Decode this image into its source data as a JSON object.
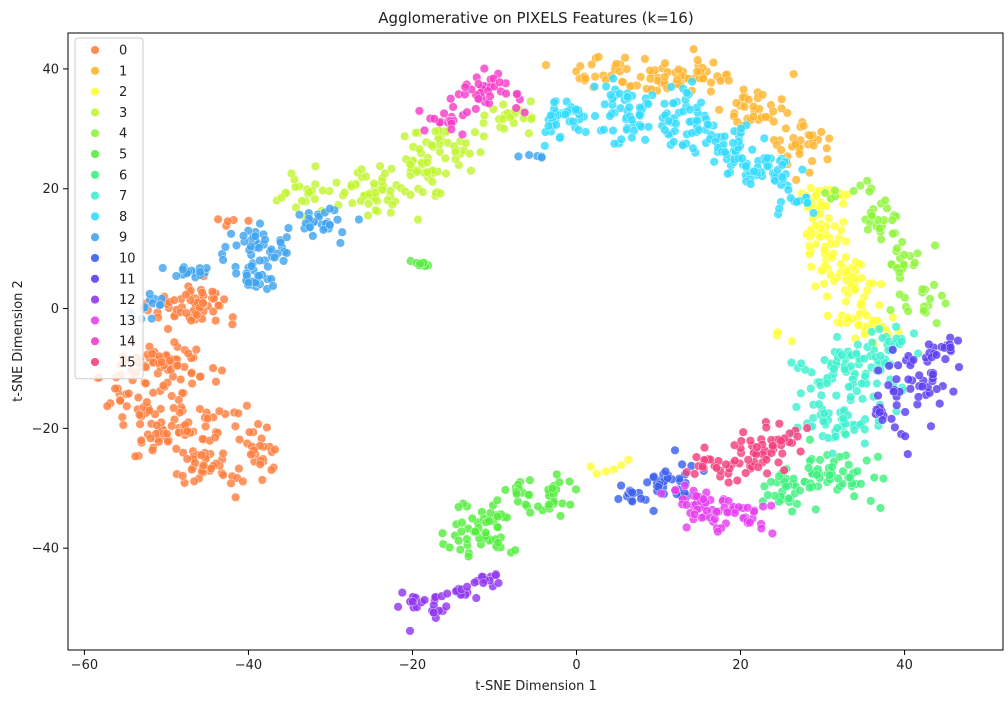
{
  "chart_data": {
    "type": "scatter",
    "title": "Agglomerative on PIXELS Features (k=16)",
    "xlabel": "t-SNE Dimension 1",
    "ylabel": "t-SNE Dimension 2",
    "xlim": [
      -62,
      52
    ],
    "ylim": [
      -57,
      46
    ],
    "xticks": [
      -60,
      -40,
      -20,
      0,
      20,
      40
    ],
    "yticks": [
      -40,
      -20,
      0,
      20,
      40
    ],
    "xtick_labels": [
      "−60",
      "−40",
      "−20",
      "0",
      "20",
      "40"
    ],
    "ytick_labels": [
      "−40",
      "−20",
      "0",
      "20",
      "40"
    ],
    "grid": false,
    "legend_position": "top-left",
    "series": [
      {
        "name": "0",
        "color": "#ff7f3f",
        "clusters": [
          {
            "cx": -47,
            "cy": 0,
            "sx": 2.5,
            "sy": 2.2,
            "n": 60
          },
          {
            "cx": -50,
            "cy": -10,
            "sx": 2.6,
            "sy": 2.2,
            "n": 70
          },
          {
            "cx": -48,
            "cy": -20,
            "sx": 3.0,
            "sy": 2.2,
            "n": 70
          },
          {
            "cx": -45,
            "cy": -27,
            "sx": 2.2,
            "sy": 1.6,
            "n": 35
          },
          {
            "cx": -39,
            "cy": -24,
            "sx": 1.3,
            "sy": 2.5,
            "n": 30
          },
          {
            "cx": -55,
            "cy": -14,
            "sx": 1.5,
            "sy": 3.0,
            "n": 25
          },
          {
            "cx": -42,
            "cy": 14,
            "sx": 1.0,
            "sy": 0.6,
            "n": 5
          }
        ]
      },
      {
        "name": "1",
        "color": "#ffb52e",
        "clusters": [
          {
            "cx": 2,
            "cy": 39,
            "sx": 1.8,
            "sy": 1.4,
            "n": 25
          },
          {
            "cx": 9,
            "cy": 39,
            "sx": 2.0,
            "sy": 1.3,
            "n": 25
          },
          {
            "cx": 15,
            "cy": 39,
            "sx": 2.0,
            "sy": 1.3,
            "n": 30
          },
          {
            "cx": 22,
            "cy": 33,
            "sx": 1.8,
            "sy": 2.2,
            "n": 35
          },
          {
            "cx": 28,
            "cy": 27,
            "sx": 1.8,
            "sy": 2.2,
            "n": 35
          }
        ]
      },
      {
        "name": "2",
        "color": "#ffff33",
        "clusters": [
          {
            "cx": 30,
            "cy": 18,
            "sx": 1.5,
            "sy": 1.5,
            "n": 30
          },
          {
            "cx": 30,
            "cy": 11,
            "sx": 1.5,
            "sy": 2.5,
            "n": 40
          },
          {
            "cx": 33,
            "cy": 5,
            "sx": 2.0,
            "sy": 2.0,
            "n": 40
          },
          {
            "cx": 35,
            "cy": -2,
            "sx": 2.0,
            "sy": 2.0,
            "n": 40
          },
          {
            "cx": 3,
            "cy": -27,
            "sx": 1.5,
            "sy": 0.6,
            "n": 6
          },
          {
            "cx": 25,
            "cy": -4,
            "sx": 0.7,
            "sy": 0.6,
            "n": 3
          }
        ]
      },
      {
        "name": "3",
        "color": "#c2f531",
        "clusters": [
          {
            "cx": -33,
            "cy": 19,
            "sx": 1.6,
            "sy": 1.5,
            "n": 25
          },
          {
            "cx": -25,
            "cy": 20,
            "sx": 2.2,
            "sy": 2.0,
            "n": 40
          },
          {
            "cx": -19,
            "cy": 23,
            "sx": 1.5,
            "sy": 2.8,
            "n": 45
          },
          {
            "cx": -15,
            "cy": 27,
            "sx": 1.6,
            "sy": 1.6,
            "n": 25
          },
          {
            "cx": -8,
            "cy": 32,
            "sx": 1.6,
            "sy": 1.3,
            "n": 25
          }
        ]
      },
      {
        "name": "4",
        "color": "#8ff53a",
        "clusters": [
          {
            "cx": 37,
            "cy": 14,
            "sx": 1.6,
            "sy": 1.6,
            "n": 22
          },
          {
            "cx": 40,
            "cy": 8,
            "sx": 1.5,
            "sy": 1.5,
            "n": 18
          },
          {
            "cx": 42,
            "cy": 1,
            "sx": 1.5,
            "sy": 2.0,
            "n": 18
          },
          {
            "cx": 34,
            "cy": 20,
            "sx": 1.5,
            "sy": 1.2,
            "n": 10
          }
        ]
      },
      {
        "name": "5",
        "color": "#54ee3e",
        "clusters": [
          {
            "cx": -11,
            "cy": -37,
            "sx": 2.0,
            "sy": 2.5,
            "n": 55
          },
          {
            "cx": -4,
            "cy": -31,
            "sx": 2.0,
            "sy": 1.6,
            "n": 40
          },
          {
            "cx": -19,
            "cy": 7.5,
            "sx": 0.7,
            "sy": 0.3,
            "n": 8
          }
        ]
      },
      {
        "name": "6",
        "color": "#3ef07e",
        "clusters": [
          {
            "cx": 32,
            "cy": -27,
            "sx": 2.5,
            "sy": 2.2,
            "n": 50
          },
          {
            "cx": 26,
            "cy": -30,
            "sx": 1.8,
            "sy": 1.8,
            "n": 30
          }
        ]
      },
      {
        "name": "7",
        "color": "#3ef0d0",
        "clusters": [
          {
            "cx": 33,
            "cy": -10,
            "sx": 2.8,
            "sy": 2.8,
            "n": 80
          },
          {
            "cx": 32,
            "cy": -19,
            "sx": 2.8,
            "sy": 2.0,
            "n": 50
          },
          {
            "cx": 38,
            "cy": -5,
            "sx": 1.5,
            "sy": 1.5,
            "n": 20
          }
        ]
      },
      {
        "name": "8",
        "color": "#33dcff",
        "clusters": [
          {
            "cx": -2,
            "cy": 32,
            "sx": 1.5,
            "sy": 2.0,
            "n": 40
          },
          {
            "cx": 6,
            "cy": 33,
            "sx": 1.6,
            "sy": 2.5,
            "n": 50
          },
          {
            "cx": 13,
            "cy": 32,
            "sx": 1.8,
            "sy": 2.8,
            "n": 55
          },
          {
            "cx": 19,
            "cy": 27,
            "sx": 1.8,
            "sy": 2.2,
            "n": 40
          },
          {
            "cx": 23,
            "cy": 23,
            "sx": 2.2,
            "sy": 1.5,
            "n": 40
          },
          {
            "cx": 27,
            "cy": 18,
            "sx": 1.2,
            "sy": 1.2,
            "n": 12
          }
        ]
      },
      {
        "name": "9",
        "color": "#3fa3f0",
        "clusters": [
          {
            "cx": -31,
            "cy": 14,
            "sx": 1.8,
            "sy": 1.6,
            "n": 30
          },
          {
            "cx": -39,
            "cy": 10,
            "sx": 2.0,
            "sy": 2.0,
            "n": 40
          },
          {
            "cx": -39,
            "cy": 5,
            "sx": 1.5,
            "sy": 1.5,
            "n": 25
          },
          {
            "cx": -47,
            "cy": 6,
            "sx": 1.6,
            "sy": 0.7,
            "n": 15
          },
          {
            "cx": -52,
            "cy": 1,
            "sx": 0.8,
            "sy": 1.5,
            "n": 12
          },
          {
            "cx": -4,
            "cy": 25.5,
            "sx": 1.0,
            "sy": 0.4,
            "n": 5
          }
        ]
      },
      {
        "name": "10",
        "color": "#3b5ff0",
        "clusters": [
          {
            "cx": 11,
            "cy": -29,
            "sx": 1.6,
            "sy": 1.8,
            "n": 30
          },
          {
            "cx": 7,
            "cy": -31,
            "sx": 1.5,
            "sy": 1.0,
            "n": 15
          }
        ]
      },
      {
        "name": "11",
        "color": "#5c3ef0",
        "clusters": [
          {
            "cx": 41,
            "cy": -12,
            "sx": 2.2,
            "sy": 3.0,
            "n": 40
          },
          {
            "cx": 44,
            "cy": -7,
            "sx": 1.5,
            "sy": 2.0,
            "n": 20
          },
          {
            "cx": 38,
            "cy": -19,
            "sx": 1.5,
            "sy": 1.5,
            "n": 12
          }
        ]
      },
      {
        "name": "12",
        "color": "#9036f0",
        "clusters": [
          {
            "cx": -20,
            "cy": -49,
            "sx": 0.8,
            "sy": 1.2,
            "n": 12
          },
          {
            "cx": -17,
            "cy": -50,
            "sx": 0.8,
            "sy": 1.2,
            "n": 12
          },
          {
            "cx": -14,
            "cy": -47.5,
            "sx": 1.2,
            "sy": 1.0,
            "n": 15
          },
          {
            "cx": -11,
            "cy": -45,
            "sx": 1.0,
            "sy": 0.8,
            "n": 10
          }
        ]
      },
      {
        "name": "13",
        "color": "#e53ef0",
        "clusters": [
          {
            "cx": 15,
            "cy": -32,
            "sx": 2.0,
            "sy": 1.6,
            "n": 35
          },
          {
            "cx": 20,
            "cy": -34,
            "sx": 2.0,
            "sy": 1.5,
            "n": 35
          }
        ]
      },
      {
        "name": "14",
        "color": "#f53ec8",
        "clusters": [
          {
            "cx": -10,
            "cy": 36,
            "sx": 1.8,
            "sy": 1.6,
            "n": 35
          },
          {
            "cx": -16,
            "cy": 31.5,
            "sx": 1.5,
            "sy": 1.0,
            "n": 20
          }
        ]
      },
      {
        "name": "15",
        "color": "#f53e7e",
        "clusters": [
          {
            "cx": 17,
            "cy": -26,
            "sx": 2.0,
            "sy": 1.2,
            "n": 25
          },
          {
            "cx": 21,
            "cy": -24,
            "sx": 1.8,
            "sy": 1.8,
            "n": 30
          },
          {
            "cx": 25,
            "cy": -21.5,
            "sx": 1.5,
            "sy": 1.3,
            "n": 20
          }
        ]
      }
    ]
  }
}
